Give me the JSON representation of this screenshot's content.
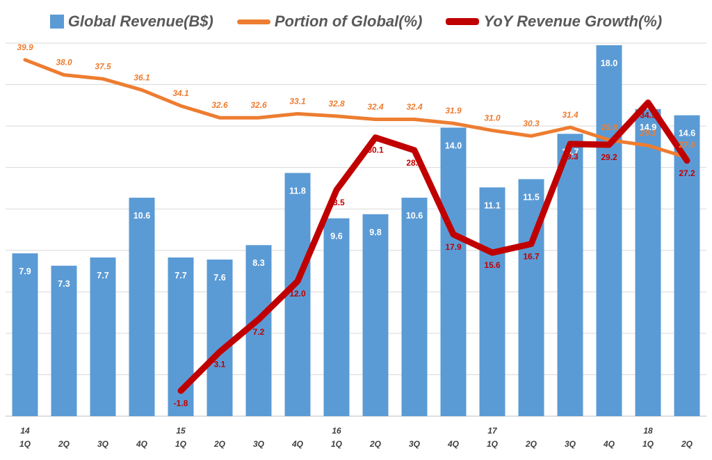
{
  "legend": {
    "revenue": "Global Revenue(B$)",
    "portion": "Portion of Global(%)",
    "yoy": "YoY Revenue Growth(%)"
  },
  "colors": {
    "bar": "#5B9BD5",
    "portion": "#ED7D31",
    "yoy": "#C00000",
    "grid": "#D9D9D9",
    "axis_text": "#404040"
  },
  "chart_data": {
    "type": "bar+line",
    "categories": [
      "1Q",
      "2Q",
      "3Q",
      "4Q",
      "1Q",
      "2Q",
      "3Q",
      "4Q",
      "1Q",
      "2Q",
      "3Q",
      "4Q",
      "1Q",
      "2Q",
      "3Q",
      "4Q",
      "1Q",
      "2Q"
    ],
    "year_labels": [
      "14",
      "",
      "",
      "",
      "15",
      "",
      "",
      "",
      "16",
      "",
      "",
      "",
      "17",
      "",
      "",
      "",
      "18",
      ""
    ],
    "series": [
      {
        "name": "Global Revenue(B$)",
        "type": "bar",
        "axis": "left",
        "values": [
          7.9,
          7.3,
          7.7,
          10.6,
          7.7,
          7.6,
          8.3,
          11.8,
          9.6,
          9.8,
          10.6,
          14.0,
          11.1,
          11.5,
          13.7,
          18.0,
          14.9,
          14.6
        ]
      },
      {
        "name": "Portion of Global(%)",
        "type": "line",
        "axis": "right",
        "values": [
          39.9,
          38.0,
          37.5,
          36.1,
          34.1,
          32.6,
          32.6,
          33.1,
          32.8,
          32.4,
          32.4,
          31.9,
          31.0,
          30.3,
          31.4,
          29.8,
          29.1,
          27.6
        ]
      },
      {
        "name": "YoY Revenue Growth(%)",
        "type": "line",
        "axis": "right",
        "values": [
          null,
          null,
          null,
          null,
          -1.8,
          3.1,
          7.2,
          12.0,
          23.5,
          30.1,
          28.5,
          17.9,
          15.6,
          16.7,
          29.3,
          29.2,
          34.5,
          27.2
        ]
      }
    ],
    "ylim_left": [
      0,
      18.1
    ],
    "ylim_right": [
      -5,
      42
    ],
    "grid": true,
    "legend_position": "top"
  }
}
